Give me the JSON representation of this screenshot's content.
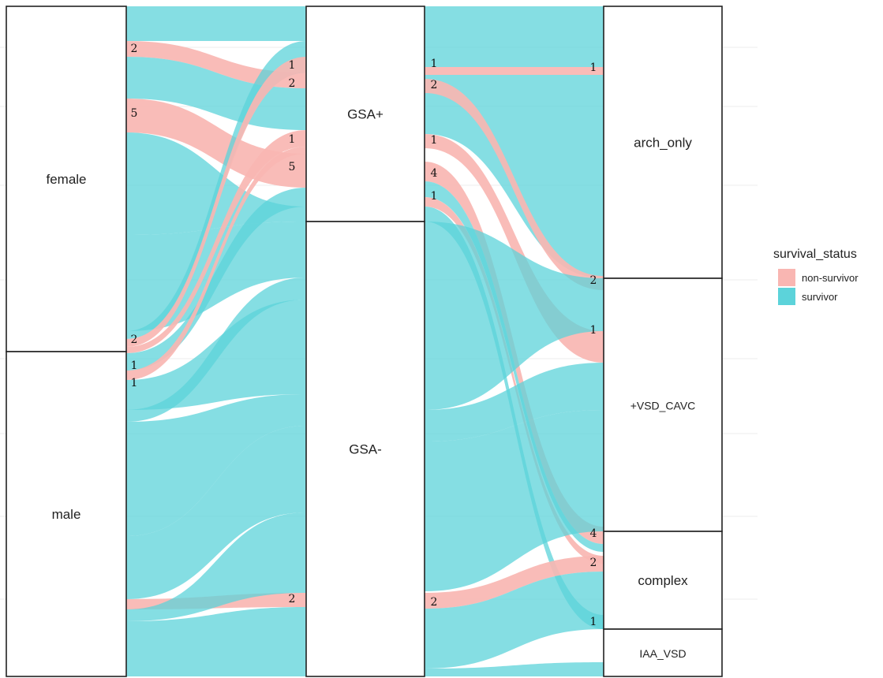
{
  "chart_data": {
    "type": "alluvial",
    "axes": [
      {
        "strata": [
          "female",
          "male"
        ]
      },
      {
        "strata": [
          "GSA+",
          "GSA-"
        ]
      },
      {
        "strata": [
          "arch_only",
          "+VSD_CAVC",
          "complex",
          "IAA_VSD"
        ]
      }
    ],
    "legend": {
      "title": "survival_status",
      "placement": "right",
      "entries": [
        {
          "name": "non-survivor",
          "color": "#F9B6B2"
        },
        {
          "name": "survivor",
          "color": "#5CD3DA"
        }
      ]
    },
    "flows": [
      {
        "sex": "female",
        "gsa": "GSA+",
        "subtype": "arch_only",
        "status": "non-survivor",
        "count": 2
      },
      {
        "sex": "female",
        "gsa": "GSA+",
        "subtype": "+VSD_CAVC",
        "status": "non-survivor",
        "count": 5
      },
      {
        "sex": "male",
        "gsa": "GSA+",
        "subtype": "arch_only",
        "status": "non-survivor",
        "count": 1
      },
      {
        "sex": "male",
        "gsa": "GSA+",
        "subtype": "+VSD_CAVC",
        "status": "non-survivor",
        "count": 1
      },
      {
        "sex": "male",
        "gsa": "GSA-",
        "subtype": "complex",
        "status": "non-survivor",
        "count": 2
      },
      {
        "sex": "female",
        "gsa": "GSA-",
        "subtype": "IAA_VSD",
        "status": "survivor",
        "count": 1
      }
    ],
    "count_labels": [
      {
        "axis": 0,
        "text": "2"
      },
      {
        "axis": 0,
        "text": "5"
      },
      {
        "axis": 0,
        "text": "2"
      },
      {
        "axis": 0,
        "text": "1"
      },
      {
        "axis": 0,
        "text": "1"
      },
      {
        "axis": 1,
        "text": "1"
      },
      {
        "axis": 1,
        "text": "2"
      },
      {
        "axis": 1,
        "text": "1"
      },
      {
        "axis": 1,
        "text": "5"
      },
      {
        "axis": 1,
        "text": "2"
      },
      {
        "axis": 1,
        "text": "1"
      },
      {
        "axis": 1,
        "text": "2"
      },
      {
        "axis": 1,
        "text": "1"
      },
      {
        "axis": 1,
        "text": "4"
      },
      {
        "axis": 1,
        "text": "1"
      },
      {
        "axis": 1,
        "text": "2"
      },
      {
        "axis": 2,
        "text": "1"
      },
      {
        "axis": 2,
        "text": "2"
      },
      {
        "axis": 2,
        "text": "1"
      },
      {
        "axis": 2,
        "text": "4"
      },
      {
        "axis": 2,
        "text": "2"
      },
      {
        "axis": 2,
        "text": "1"
      }
    ]
  }
}
